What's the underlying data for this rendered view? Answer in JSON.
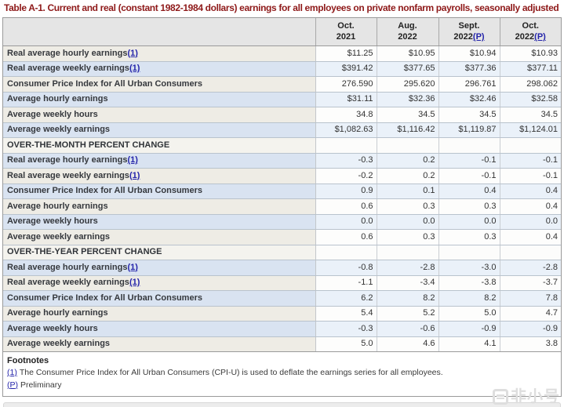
{
  "page": {
    "title": "Table A-1. Current and real (constant 1982-1984 dollars) earnings for all employees on private nonfarm payrolls, seasonally adjusted",
    "watermark_text": "非小号"
  },
  "colors": {
    "title": "#8e1919",
    "link": "#2424aa",
    "header_bg": "#e5e5e5",
    "row_light_label_bg": "#eeece5",
    "row_light_value_bg": "#fdfdfc",
    "row_blue_label_bg": "#d9e3f1",
    "row_blue_value_bg": "#eaf1f9",
    "border_outer": "#9a9a9a",
    "text": "#333333"
  },
  "table": {
    "preliminary_mark": "(P)",
    "columns": [
      {
        "month": "Oct.",
        "year": "2021",
        "preliminary": false
      },
      {
        "month": "Aug.",
        "year": "2022",
        "preliminary": false
      },
      {
        "month": "Sept.",
        "year": "2022",
        "preliminary": true
      },
      {
        "month": "Oct.",
        "year": "2022",
        "preliminary": true
      }
    ],
    "sections": [
      {
        "header": null,
        "rows": [
          {
            "label": "Real average hourly earnings",
            "footnote": "(1)",
            "values": [
              "$11.25",
              "$10.95",
              "$10.94",
              "$10.93"
            ]
          },
          {
            "label": "Real average weekly earnings",
            "footnote": "(1)",
            "values": [
              "$391.42",
              "$377.65",
              "$377.36",
              "$377.11"
            ]
          },
          {
            "label": "Consumer Price Index for All Urban Consumers",
            "footnote": null,
            "values": [
              "276.590",
              "295.620",
              "296.761",
              "298.062"
            ]
          },
          {
            "label": "Average hourly earnings",
            "footnote": null,
            "values": [
              "$31.11",
              "$32.36",
              "$32.46",
              "$32.58"
            ]
          },
          {
            "label": "Average weekly hours",
            "footnote": null,
            "values": [
              "34.8",
              "34.5",
              "34.5",
              "34.5"
            ]
          },
          {
            "label": "Average weekly earnings",
            "footnote": null,
            "values": [
              "$1,082.63",
              "$1,116.42",
              "$1,119.87",
              "$1,124.01"
            ]
          }
        ]
      },
      {
        "header": "OVER-THE-MONTH PERCENT CHANGE",
        "rows": [
          {
            "label": "Real average hourly earnings",
            "footnote": "(1)",
            "values": [
              "-0.3",
              "0.2",
              "-0.1",
              "-0.1"
            ]
          },
          {
            "label": "Real average weekly earnings",
            "footnote": "(1)",
            "values": [
              "-0.2",
              "0.2",
              "-0.1",
              "-0.1"
            ]
          },
          {
            "label": "Consumer Price Index for All Urban Consumers",
            "footnote": null,
            "values": [
              "0.9",
              "0.1",
              "0.4",
              "0.4"
            ]
          },
          {
            "label": "Average hourly earnings",
            "footnote": null,
            "values": [
              "0.6",
              "0.3",
              "0.3",
              "0.4"
            ]
          },
          {
            "label": "Average weekly hours",
            "footnote": null,
            "values": [
              "0.0",
              "0.0",
              "0.0",
              "0.0"
            ]
          },
          {
            "label": "Average weekly earnings",
            "footnote": null,
            "values": [
              "0.6",
              "0.3",
              "0.3",
              "0.4"
            ]
          }
        ]
      },
      {
        "header": "OVER-THE-YEAR PERCENT CHANGE",
        "rows": [
          {
            "label": "Real average hourly earnings",
            "footnote": "(1)",
            "values": [
              "-0.8",
              "-2.8",
              "-3.0",
              "-2.8"
            ]
          },
          {
            "label": "Real average weekly earnings",
            "footnote": "(1)",
            "values": [
              "-1.1",
              "-3.4",
              "-3.8",
              "-3.7"
            ]
          },
          {
            "label": "Consumer Price Index for All Urban Consumers",
            "footnote": null,
            "values": [
              "6.2",
              "8.2",
              "8.2",
              "7.8"
            ]
          },
          {
            "label": "Average hourly earnings",
            "footnote": null,
            "values": [
              "5.4",
              "5.2",
              "5.0",
              "4.7"
            ]
          },
          {
            "label": "Average weekly hours",
            "footnote": null,
            "values": [
              "-0.3",
              "-0.6",
              "-0.9",
              "-0.9"
            ]
          },
          {
            "label": "Average weekly earnings",
            "footnote": null,
            "values": [
              "5.0",
              "4.6",
              "4.1",
              "3.8"
            ]
          }
        ]
      }
    ]
  },
  "footnotes": {
    "heading": "Footnotes",
    "items": [
      {
        "mark": "(1)",
        "text": "The Consumer Price Index for All Urban Consumers (CPI-U) is used to deflate the earnings series for all employees."
      },
      {
        "mark": "(P)",
        "text": "Preliminary"
      }
    ]
  }
}
